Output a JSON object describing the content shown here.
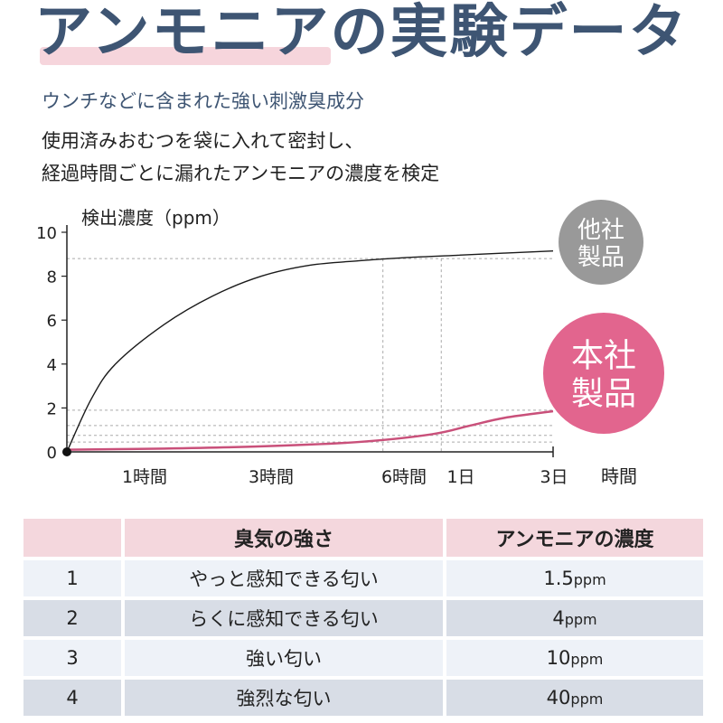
{
  "header": {
    "title": "アンモニアの実験データ",
    "subtitle": "ウンチなどに含まれた強い刺激臭成分",
    "desc_lines": [
      "使用済みおむつを袋に入れて密封し、",
      "経過時間ごとに漏れたアンモニアの濃度を検定"
    ]
  },
  "chart_data": {
    "type": "line",
    "ylabel": "検出濃度（ppm）",
    "xlabel": "時間",
    "y_ticks": [
      "0",
      "2",
      "4",
      "6",
      "8",
      "10"
    ],
    "x_ticks": [
      "1時間",
      "3時間",
      "6時間",
      "1日",
      "3日"
    ],
    "ylim": [
      0,
      10
    ],
    "series": [
      {
        "name": "他社製品",
        "color": "#1a1a1a",
        "points": [
          [
            0,
            0
          ],
          [
            0.5,
            2.4
          ],
          [
            1,
            4.0
          ],
          [
            2,
            5.8
          ],
          [
            3,
            7.1
          ],
          [
            4,
            8.0
          ],
          [
            5,
            8.5
          ],
          [
            6,
            8.7
          ],
          [
            7,
            8.85
          ],
          [
            8,
            8.95
          ],
          [
            9,
            9.05
          ],
          [
            10,
            9.15
          ]
        ]
      },
      {
        "name": "本社製品",
        "color": "#c9507a",
        "points": [
          [
            0,
            0.1
          ],
          [
            2,
            0.15
          ],
          [
            4,
            0.25
          ],
          [
            6,
            0.45
          ],
          [
            7.5,
            0.8
          ],
          [
            8.3,
            1.2
          ],
          [
            9,
            1.55
          ],
          [
            10,
            1.85
          ]
        ]
      }
    ],
    "ref_lines_y": [
      8.8,
      1.9,
      1.2,
      0.75,
      0.45
    ],
    "ref_lines_x": [
      6.5,
      7.7
    ],
    "badges": [
      {
        "lines": [
          "他社",
          "製品"
        ],
        "color": "#999999"
      },
      {
        "lines": [
          "本社",
          "製品"
        ],
        "color": "#e2658e"
      }
    ]
  },
  "table": {
    "headers": [
      "",
      "臭気の強さ",
      "アンモニアの濃度"
    ],
    "rows": [
      {
        "level": "1",
        "desc": "やっと感知できる匂い",
        "num": "1.5",
        "unit": "ppm"
      },
      {
        "level": "2",
        "desc": "らくに感知できる匂い",
        "num": "4",
        "unit": "ppm"
      },
      {
        "level": "3",
        "desc": "強い匂い",
        "num": "10",
        "unit": "ppm"
      },
      {
        "level": "4",
        "desc": "強烈な匂い",
        "num": "40",
        "unit": "ppm"
      }
    ]
  }
}
